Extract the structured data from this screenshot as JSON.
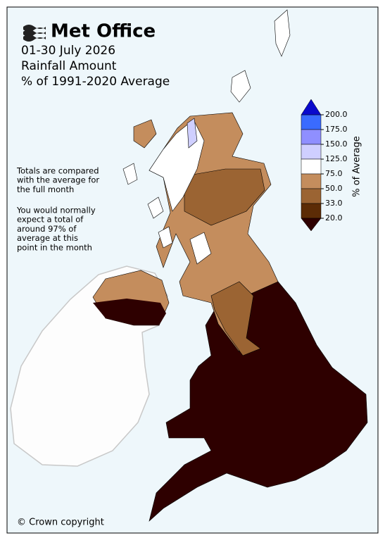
{
  "header": {
    "logo": "Met Office",
    "title_lines": [
      "01-30 July 2026",
      "Rainfall Amount",
      "% of 1991-2020 Average"
    ]
  },
  "notes": [
    [
      "Totals are compared",
      "with the average for",
      "the full month"
    ],
    [
      "You would normally",
      "expect a total of",
      "around 97% of",
      "average at this",
      "point in the month"
    ]
  ],
  "legend": {
    "label": "% of Average",
    "ticks": [
      {
        "value": 200,
        "label": "200.0"
      },
      {
        "value": 175,
        "label": "175.0"
      },
      {
        "value": 150,
        "label": "150.0"
      },
      {
        "value": 125,
        "label": "125.0"
      },
      {
        "value": 75,
        "label": "75.0"
      },
      {
        "value": 50,
        "label": "50.0"
      },
      {
        "value": 33,
        "label": "33.0"
      },
      {
        "value": 20,
        "label": "20.0"
      }
    ],
    "colors": [
      "#3a6bff",
      "#8f8fff",
      "#cfcfff",
      "#ffffff",
      "#c48d5d",
      "#9b6433",
      "#5c2c06"
    ],
    "extend_colors": [
      "#0a0acc",
      "#2e0000"
    ]
  },
  "footer": "© Crown copyright"
}
